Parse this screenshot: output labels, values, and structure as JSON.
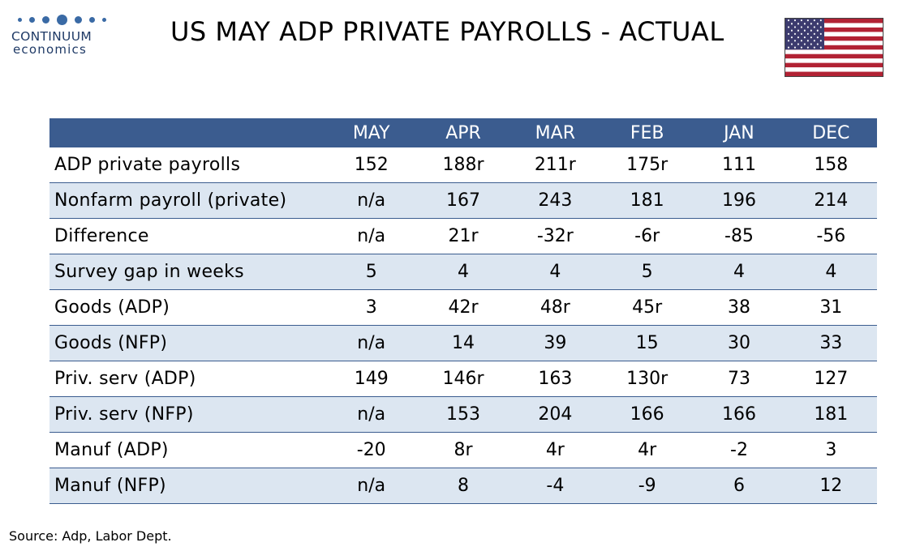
{
  "logo": {
    "line1": "CONTINUUM",
    "line2": "economics"
  },
  "title": "US MAY ADP PRIVATE PAYROLLS - ACTUAL",
  "colors": {
    "header_bg": "#3b5c8f",
    "stripe_bg": "#dce6f1",
    "logo_blue": "#1f3a66",
    "flag_red": "#b22234",
    "flag_blue": "#3c3b6e"
  },
  "icons": {
    "flag": "us-flag-icon"
  },
  "source": "Source: Adp, Labor Dept.",
  "chart_data": {
    "type": "table",
    "columns": [
      "",
      "MAY",
      "APR",
      "MAR",
      "FEB",
      "JAN",
      "DEC"
    ],
    "rows": [
      [
        "ADP private payrolls",
        "152",
        "188r",
        "211r",
        "175r",
        "111",
        "158"
      ],
      [
        "Nonfarm payroll (private)",
        "n/a",
        "167",
        "243",
        "181",
        "196",
        "214"
      ],
      [
        "Difference",
        "n/a",
        "21r",
        "-32r",
        "-6r",
        "-85",
        "-56"
      ],
      [
        "Survey gap in weeks",
        "5",
        "4",
        "4",
        "5",
        "4",
        "4"
      ],
      [
        "Goods (ADP)",
        "3",
        "42r",
        "48r",
        "45r",
        "38",
        "31"
      ],
      [
        "Goods (NFP)",
        "n/a",
        "14",
        "39",
        "15",
        "30",
        "33"
      ],
      [
        "Priv. serv (ADP)",
        "149",
        "146r",
        "163",
        "130r",
        "73",
        "127"
      ],
      [
        "Priv. serv (NFP)",
        "n/a",
        "153",
        "204",
        "166",
        "166",
        "181"
      ],
      [
        "Manuf (ADP)",
        "-20",
        "8r",
        "4r",
        "4r",
        "-2",
        "3"
      ],
      [
        "Manuf (NFP)",
        "n/a",
        "8",
        "-4",
        "-9",
        "6",
        "12"
      ]
    ]
  }
}
